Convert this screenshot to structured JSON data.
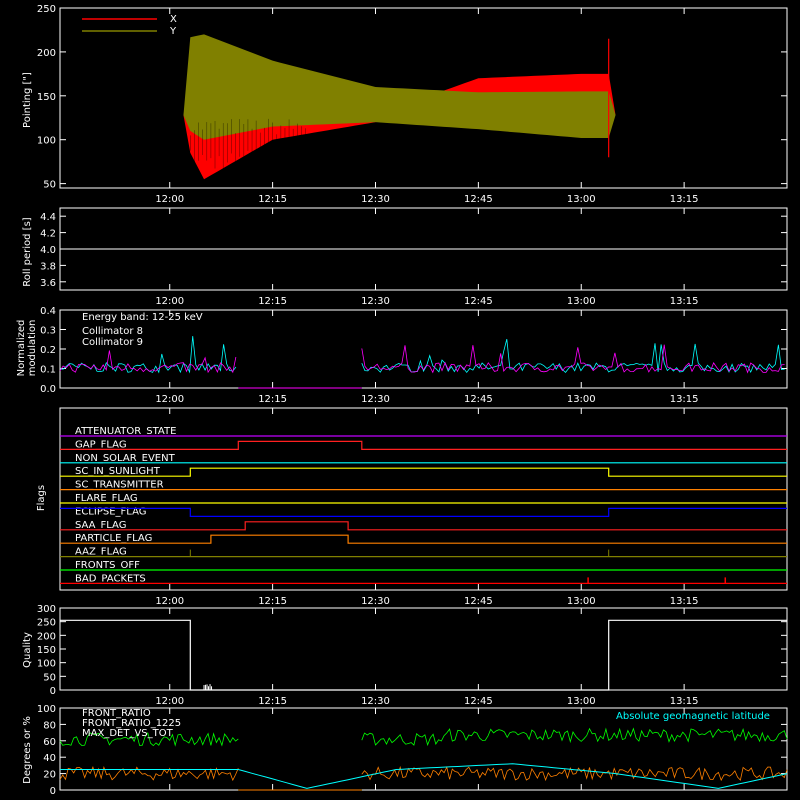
{
  "colors": {
    "background": "#000000",
    "axis": "#ffffff",
    "red": "#ff0000",
    "olive": "#808000",
    "cyan": "#00ffff",
    "magenta": "#ff00ff",
    "green": "#00ff00",
    "orange": "#ff8000",
    "yellow": "#ffff00",
    "blue": "#0000ff",
    "purple": "#c000ff"
  },
  "time_ticks": [
    "12:00",
    "12:15",
    "12:30",
    "12:45",
    "13:00",
    "13:15"
  ],
  "panels": {
    "pointing": {
      "ylabel": "Pointing [\"]",
      "yticks": [
        "250",
        "200",
        "150",
        "100",
        "50"
      ],
      "legend": [
        {
          "label": "X",
          "color": "#ff0000"
        },
        {
          "label": "Y",
          "color": "#808000"
        }
      ]
    },
    "roll": {
      "ylabel": "Roll period [s]",
      "yticks": [
        "4.4",
        "4.2",
        "4.0",
        "3.8",
        "3.6"
      ]
    },
    "modulation": {
      "ylabel_line1": "Normalized",
      "ylabel_line2": "modulation",
      "yticks": [
        "0.4",
        "0.3",
        "0.2",
        "0.1",
        "0.0"
      ],
      "energy_band": "Energy band: 12-25 keV",
      "legend": [
        {
          "label": "Collimator 8",
          "color": "#00ffff"
        },
        {
          "label": "Collimator 9",
          "color": "#ff00ff"
        }
      ]
    },
    "flags": {
      "ylabel": "Flags",
      "items": [
        {
          "label": "ATTENUATOR_STATE",
          "color": "#c000ff"
        },
        {
          "label": "GAP_FLAG",
          "color": "#ff2020"
        },
        {
          "label": "NON_SOLAR_EVENT",
          "color": "#00ffff"
        },
        {
          "label": "SC_IN_SUNLIGHT",
          "color": "#ffff00"
        },
        {
          "label": "SC_TRANSMITTER",
          "color": "#ff8000"
        },
        {
          "label": "FLARE_FLAG",
          "color": "#ffff00"
        },
        {
          "label": "ECLIPSE_FLAG",
          "color": "#0000ff"
        },
        {
          "label": "SAA_FLAG",
          "color": "#ff2020"
        },
        {
          "label": "PARTICLE_FLAG",
          "color": "#ff8000"
        },
        {
          "label": "AAZ_FLAG",
          "color": "#808000"
        },
        {
          "label": "FRONTS_OFF",
          "color": "#00ff00"
        },
        {
          "label": "BAD_PACKETS",
          "color": "#ff0000"
        }
      ]
    },
    "quality": {
      "ylabel": "Quality",
      "yticks": [
        "300",
        "250",
        "200",
        "150",
        "100",
        "50",
        "0"
      ]
    },
    "geomag": {
      "ylabel": "Degrees or %",
      "yticks": [
        "100",
        "80",
        "60",
        "40",
        "20",
        "0"
      ],
      "legend": [
        {
          "label": "FRONT_RATIO",
          "color": "#ffff00"
        },
        {
          "label": "FRONT_RATIO_1225",
          "color": "#00ff00"
        },
        {
          "label": "MAX_DET_VS_TOT",
          "color": "#ff8000"
        }
      ],
      "right_label": "Absolute geomagnetic latitude"
    }
  },
  "chart_data": [
    {
      "type": "line",
      "title": "",
      "ylabel": "Pointing [\"]",
      "x_unit": "time (UT)",
      "x_range": [
        "11:44",
        "13:30"
      ],
      "ylim": [
        45,
        250
      ],
      "series": [
        {
          "name": "X",
          "description": "oscillation envelope min/max",
          "x": [
            "11:44",
            "12:02",
            "12:02",
            "12:05",
            "12:15",
            "12:30",
            "12:45",
            "13:00",
            "13:04",
            "13:04",
            "13:30"
          ],
          "upper": [
            128,
            128,
            160,
            155,
            143,
            128,
            170,
            175,
            175,
            128,
            128
          ],
          "lower": [
            128,
            128,
            100,
            55,
            100,
            120,
            129,
            130,
            130,
            128,
            128
          ]
        },
        {
          "name": "Y",
          "description": "oscillation envelope min/max",
          "x": [
            "11:44",
            "12:02",
            "12:02",
            "12:05",
            "12:15",
            "12:30",
            "12:45",
            "13:00",
            "13:04",
            "13:04",
            "13:30"
          ],
          "upper": [
            128,
            128,
            215,
            220,
            190,
            160,
            154,
            155,
            155,
            128,
            128
          ],
          "lower": [
            128,
            128,
            115,
            100,
            115,
            120,
            112,
            102,
            102,
            128,
            128
          ]
        }
      ]
    },
    {
      "type": "line",
      "ylabel": "Roll period [s]",
      "ylim": [
        3.5,
        4.5
      ],
      "series": [
        {
          "name": "",
          "x": [
            "11:44",
            "13:30"
          ],
          "values": [
            4.0,
            4.0
          ]
        }
      ]
    },
    {
      "type": "line",
      "ylabel": "Normalized modulation",
      "ylim": [
        0.0,
        0.4
      ],
      "series": [
        {
          "name": "Collimator 8",
          "x": [
            "11:44",
            "12:10",
            "12:10",
            "12:28",
            "12:28",
            "13:30"
          ],
          "values": [
            0.1,
            0.1,
            0.0,
            0.0,
            0.1,
            0.1
          ]
        },
        {
          "name": "Collimator 9",
          "x": [
            "11:44",
            "12:10",
            "12:10",
            "12:28",
            "12:28",
            "13:30"
          ],
          "values": [
            0.1,
            0.1,
            0.0,
            0.0,
            0.1,
            0.1
          ]
        }
      ]
    },
    {
      "type": "line",
      "ylabel": "Flags",
      "series": [
        {
          "name": "GAP_FLAG",
          "x": [
            "11:44",
            "12:10",
            "12:10",
            "12:28",
            "12:28",
            "13:30"
          ],
          "values": [
            0,
            0,
            1,
            1,
            0,
            0
          ]
        },
        {
          "name": "SC_IN_SUNLIGHT",
          "x": [
            "11:44",
            "12:03",
            "12:03",
            "13:04",
            "13:04",
            "13:30"
          ],
          "values": [
            0,
            0,
            1,
            1,
            0,
            0
          ]
        },
        {
          "name": "ECLIPSE_FLAG",
          "x": [
            "11:44",
            "12:03",
            "12:03",
            "13:04",
            "13:04",
            "13:30"
          ],
          "values": [
            1,
            1,
            0,
            0,
            1,
            1
          ]
        },
        {
          "name": "SAA_FLAG",
          "x": [
            "11:44",
            "12:11",
            "12:11",
            "12:26",
            "12:26",
            "13:30"
          ],
          "values": [
            0,
            0,
            1,
            1,
            0,
            0
          ]
        },
        {
          "name": "PARTICLE_FLAG",
          "x": [
            "11:44",
            "12:06",
            "12:06",
            "12:26",
            "12:26",
            "13:30"
          ],
          "values": [
            0,
            0,
            1,
            1,
            0,
            0
          ]
        }
      ]
    },
    {
      "type": "line",
      "ylabel": "Quality",
      "ylim": [
        0,
        300
      ],
      "series": [
        {
          "name": "",
          "x": [
            "11:44",
            "12:03",
            "12:03",
            "13:04",
            "13:04",
            "13:30"
          ],
          "values": [
            255,
            255,
            0,
            0,
            255,
            255
          ]
        }
      ]
    },
    {
      "type": "line",
      "ylabel": "Degrees or %",
      "ylim": [
        0,
        100
      ],
      "series": [
        {
          "name": "FRONT_RATIO_1225",
          "x": [
            "11:44",
            "12:10",
            "12:10",
            "12:28",
            "12:28",
            "13:30"
          ],
          "values": [
            60,
            60,
            0,
            0,
            65,
            65
          ]
        },
        {
          "name": "MAX_DET_VS_TOT",
          "x": [
            "11:44",
            "12:10",
            "12:10",
            "12:28",
            "12:28",
            "13:30"
          ],
          "values": [
            20,
            20,
            0,
            0,
            20,
            20
          ]
        },
        {
          "name": "Absolute geomagnetic latitude",
          "x": [
            "11:44",
            "12:10",
            "12:20",
            "12:33",
            "12:50",
            "13:05",
            "13:20",
            "13:30"
          ],
          "values": [
            25,
            25,
            2,
            25,
            32,
            20,
            2,
            20
          ]
        }
      ]
    }
  ]
}
